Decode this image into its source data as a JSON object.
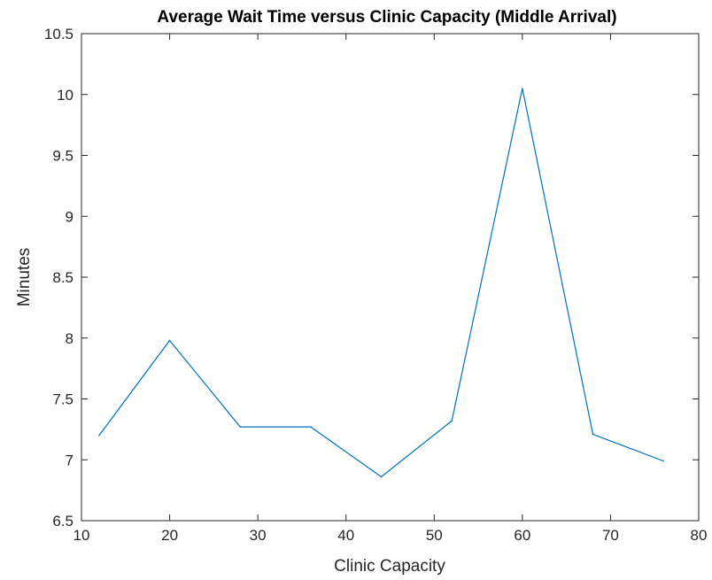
{
  "chart_data": {
    "type": "line",
    "title": "Average Wait Time versus Clinic Capacity (Middle Arrival)",
    "xlabel": "Clinic Capacity",
    "ylabel": "Minutes",
    "xlim": [
      10,
      80
    ],
    "ylim": [
      6.5,
      10.5
    ],
    "xticks": [
      10,
      20,
      30,
      40,
      50,
      60,
      70,
      80
    ],
    "yticks": [
      6.5,
      7,
      7.5,
      8,
      8.5,
      9,
      9.5,
      10,
      10.5
    ],
    "xtick_labels": [
      "10",
      "20",
      "30",
      "40",
      "50",
      "60",
      "70",
      "80"
    ],
    "ytick_labels": [
      "6.5",
      "7",
      "7.5",
      "8",
      "8.5",
      "9",
      "9.5",
      "10",
      "10.5"
    ],
    "grid": false,
    "series": [
      {
        "color": "#0072BD",
        "x": [
          12,
          20,
          28,
          36,
          44,
          52,
          60,
          68,
          76
        ],
        "y": [
          7.2,
          7.98,
          7.27,
          7.27,
          6.86,
          7.32,
          10.05,
          7.21,
          6.99
        ]
      }
    ]
  }
}
